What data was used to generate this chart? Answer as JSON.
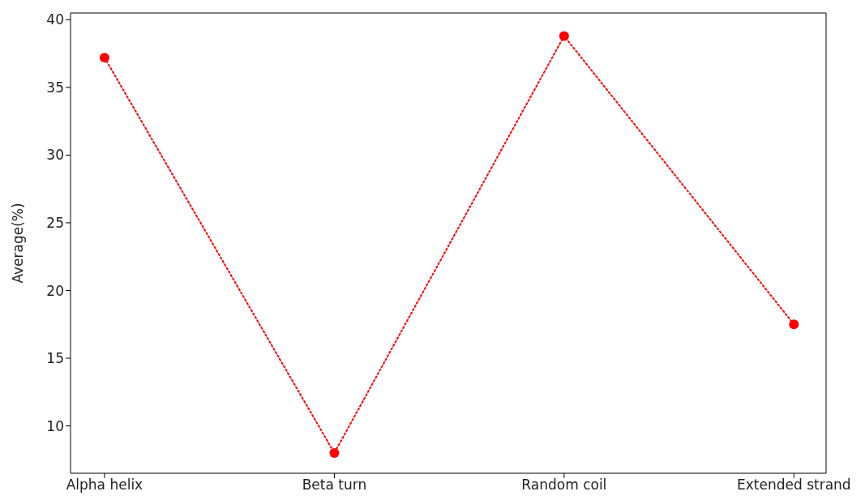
{
  "chart_data": {
    "type": "line",
    "ylabel": "Average(%)",
    "categories": [
      "Alpha helix",
      "Beta turn",
      "Random coil",
      "Extended strand"
    ],
    "series": [
      {
        "color": "#ff0000",
        "values": [
          37.2,
          8.0,
          38.8,
          17.5
        ]
      }
    ],
    "ylim": [
      6.5,
      40.5
    ],
    "yticks": [
      10,
      15,
      20,
      25,
      30,
      35,
      40
    ],
    "grid": false,
    "legend": false,
    "marker": "circle",
    "line_style": "dotted"
  }
}
